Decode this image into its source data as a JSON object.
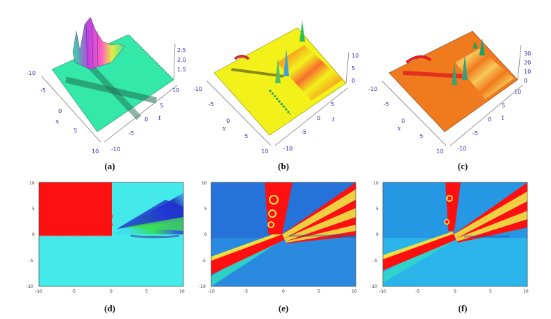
{
  "figure": {
    "captions": [
      "(a)",
      "(b)",
      "(c)",
      "(d)",
      "(e)",
      "(f)"
    ],
    "surface_plots": [
      {
        "id": "a",
        "surface_color": "#33e8a8",
        "x_label": "x",
        "t_label": "t",
        "x_ticks": [
          "-10",
          "-5",
          "0",
          "5",
          "10"
        ],
        "t_ticks": [
          "10",
          "5",
          "0",
          "-5",
          "-10"
        ],
        "z_ticks": [
          "2.5",
          "2.0",
          "1.5"
        ]
      },
      {
        "id": "b",
        "surface_color": "#f2f21a",
        "x_label": "x",
        "t_label": "t",
        "x_ticks": [
          "-10",
          "-5",
          "0",
          "5",
          "10"
        ],
        "t_ticks": [
          "5",
          "0",
          "-5",
          "-10"
        ],
        "z_ticks": [
          "10",
          "5",
          "0"
        ]
      },
      {
        "id": "c",
        "surface_color": "#f07a1e",
        "x_label": "x",
        "t_label": "t",
        "x_ticks": [
          "-10",
          "-5",
          "0",
          "5",
          "10"
        ],
        "t_ticks": [
          "10",
          "5",
          "0",
          "-5",
          "-10"
        ],
        "z_ticks": [
          "30",
          "20",
          "10",
          "0"
        ]
      }
    ],
    "density_plots": [
      {
        "id": "d",
        "x_ticks": [
          "-10",
          "-5",
          "0",
          "5",
          "10"
        ],
        "y_ticks": [
          "10",
          "5",
          "0",
          "-5",
          "-10"
        ]
      },
      {
        "id": "e",
        "x_ticks": [
          "-10",
          "-5",
          "0",
          "5",
          "10"
        ],
        "y_ticks": [
          "10",
          "5",
          "0",
          "-5",
          "-10"
        ]
      },
      {
        "id": "f",
        "x_ticks": [
          "-10",
          "-5",
          "0",
          "5",
          "10"
        ],
        "y_ticks": [
          "10",
          "5",
          "0",
          "-5",
          "-10"
        ]
      }
    ]
  }
}
